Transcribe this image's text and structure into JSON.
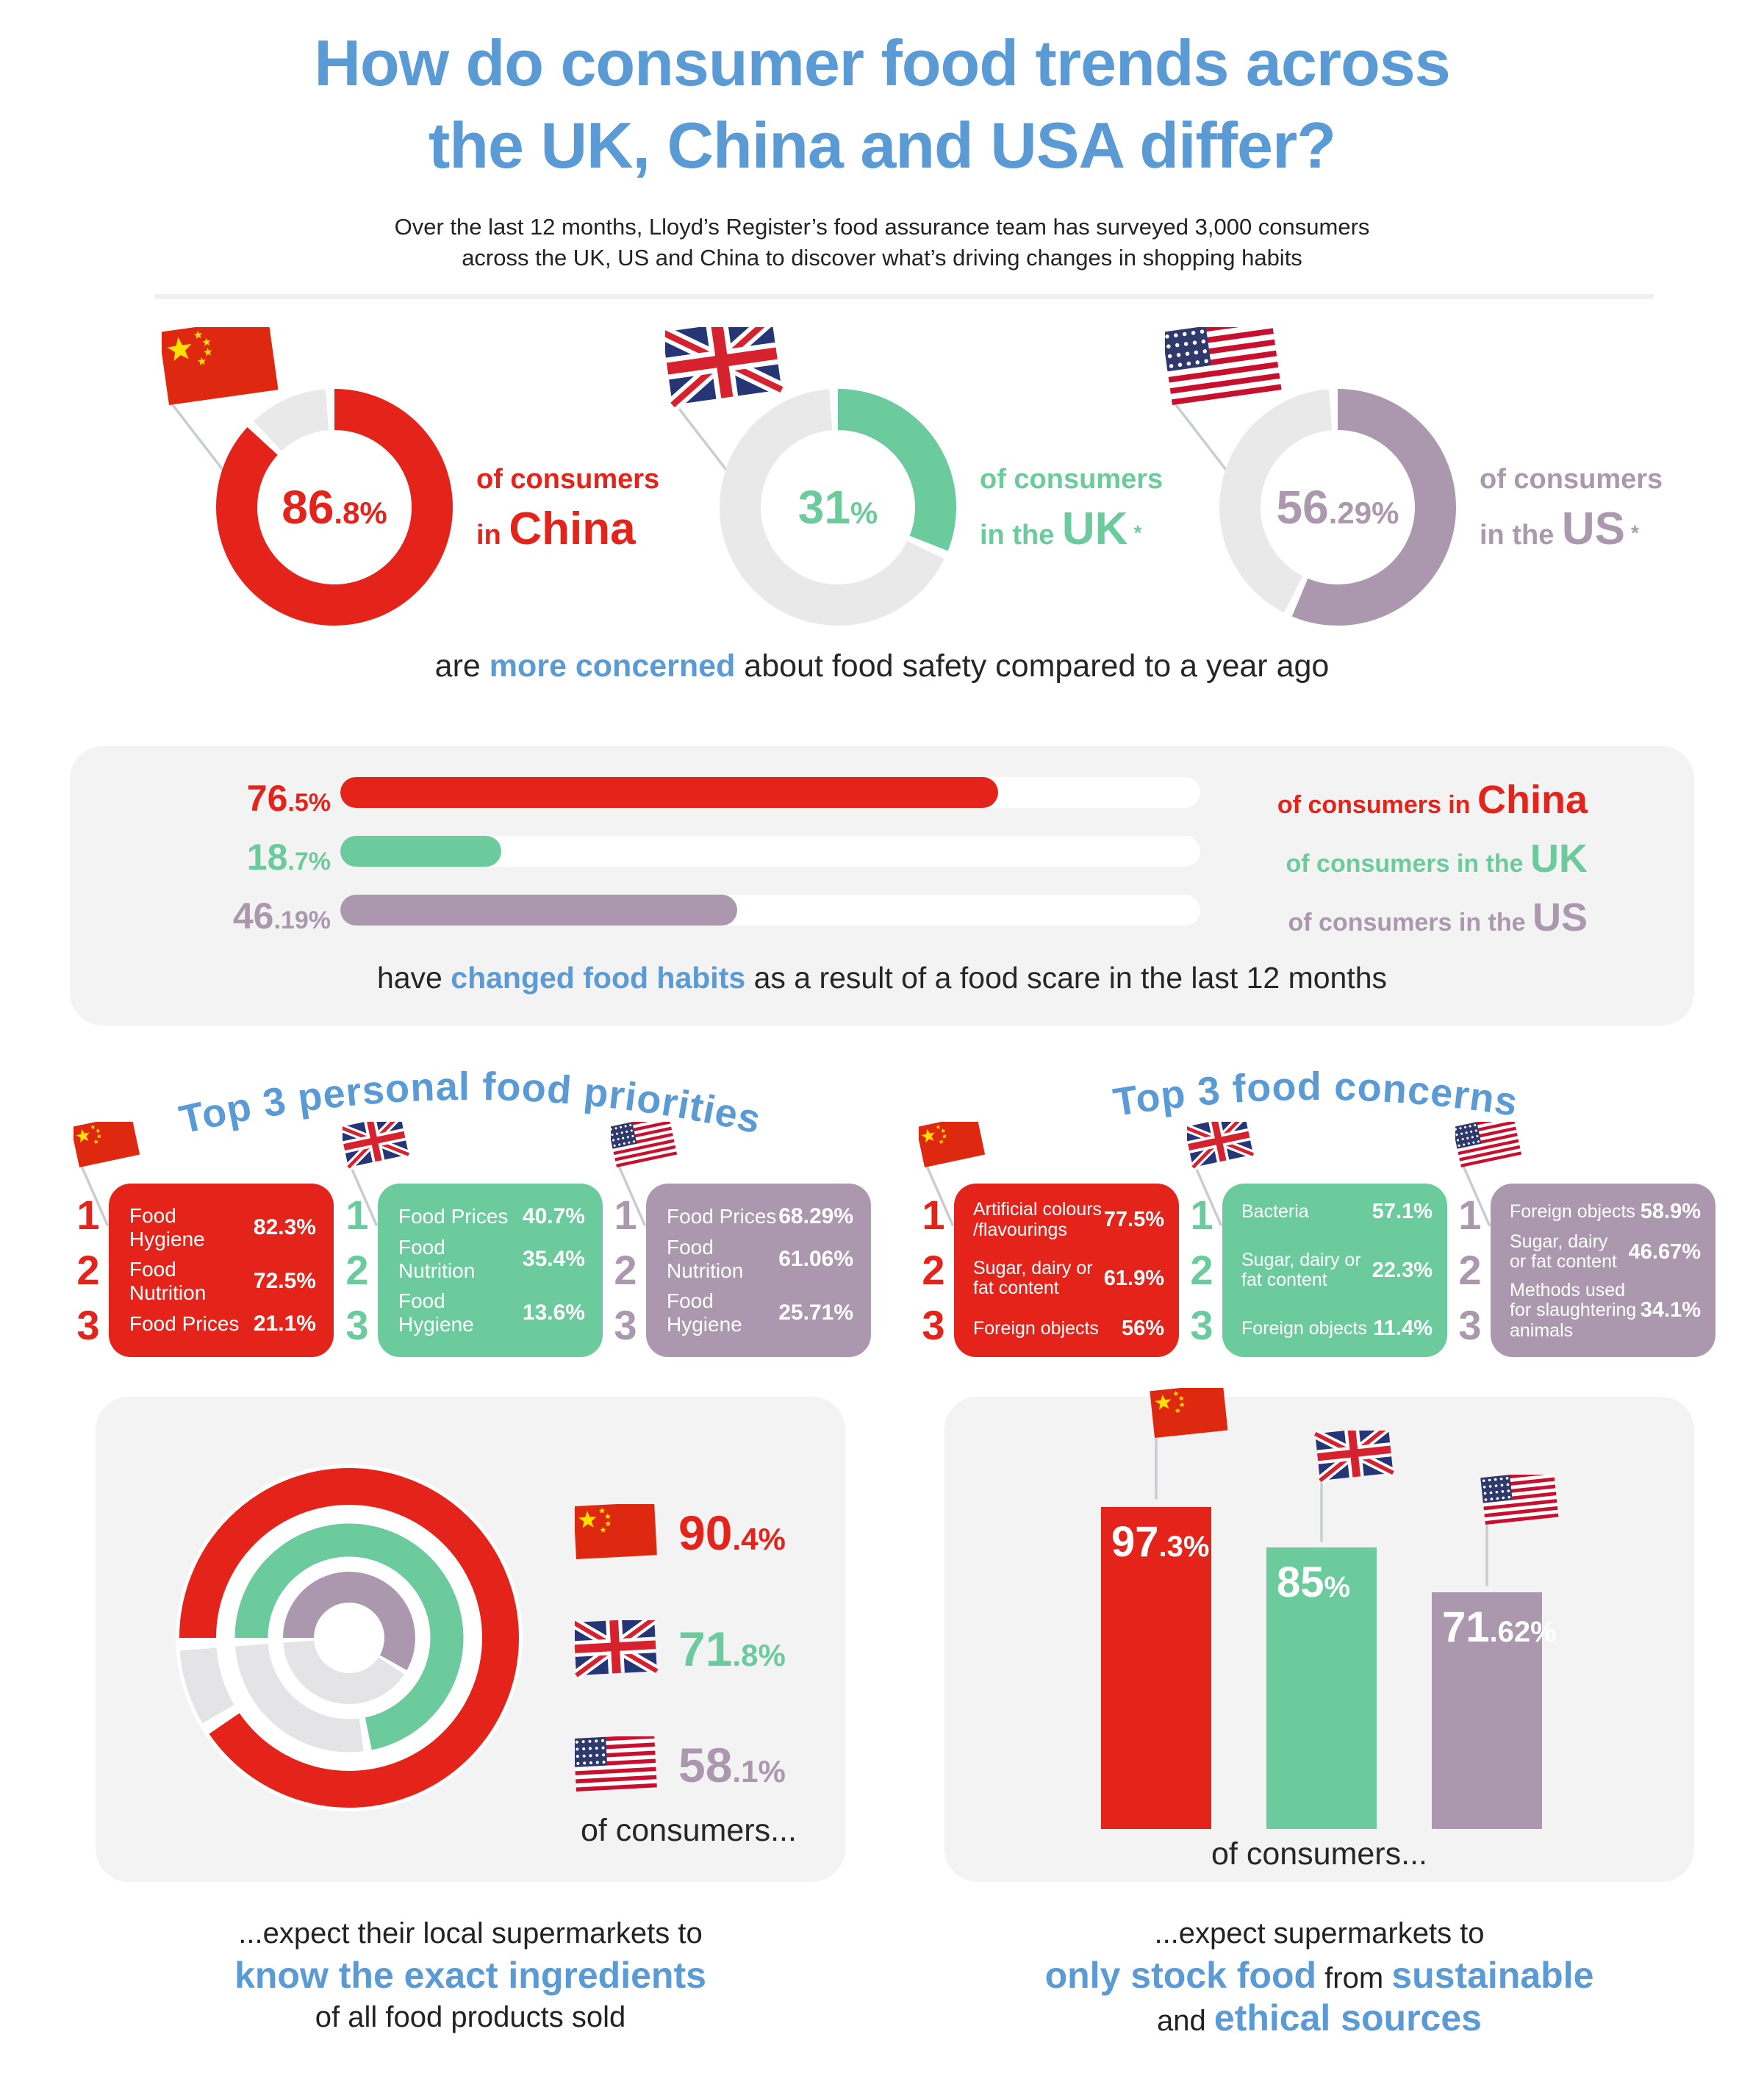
{
  "colors": {
    "china": "#e4231b",
    "uk": "#6bcb9d",
    "us": "#ab97ae",
    "blue": "#5a9ad5",
    "track_light": "#e9e9ea",
    "track_gray": "#e4e4e6",
    "panel": "#f3f3f4",
    "pole": "#c9cdd1"
  },
  "header": {
    "title_line1": "How do consumer food trends across",
    "title_line2": "the UK, China and USA differ?",
    "subtitle_line1": "Over the last 12 months, Lloyd’s Register’s food assurance team has surveyed 3,000 consumers",
    "subtitle_line2": "across the UK, US and China to discover what’s driving changes in shopping habits"
  },
  "safety_donuts": {
    "caption": {
      "pre": "are ",
      "highlight": "more concerned",
      "post": " about food safety compared to a year ago"
    },
    "items": [
      {
        "country": "china",
        "percent": 86.8,
        "value_big": "86",
        "value_small": ".8%",
        "label_line1": "of consumers",
        "label_line2_pre": "in ",
        "label_line2_big": "China",
        "asterisk": ""
      },
      {
        "country": "uk",
        "percent": 31,
        "value_big": "31",
        "value_small": "%",
        "label_line1": "of consumers",
        "label_line2_pre": "in the ",
        "label_line2_big": "UK",
        "asterisk": "*"
      },
      {
        "country": "us",
        "percent": 56.29,
        "value_big": "56",
        "value_small": ".29%",
        "label_line1": "of consumers",
        "label_line2_pre": "in the ",
        "label_line2_big": "US",
        "asterisk": "*"
      }
    ]
  },
  "habit_bars": {
    "caption": {
      "pre": "have ",
      "highlight": "changed food habits",
      "post": " as a result of a food scare in the last 12 months"
    },
    "items": [
      {
        "country": "china",
        "percent": 76.5,
        "value_big": "76",
        "value_small": ".5%",
        "label_pre": "of consumers in ",
        "label_big": "China"
      },
      {
        "country": "uk",
        "percent": 18.7,
        "value_big": "18",
        "value_small": ".7%",
        "label_pre": "of consumers in the ",
        "label_big": "UK"
      },
      {
        "country": "us",
        "percent": 46.19,
        "value_big": "46",
        "value_small": ".19%",
        "label_pre": "of consumers in the ",
        "label_big": "US"
      }
    ]
  },
  "priorities": {
    "title": "Top 3 personal food priorities",
    "tables": [
      {
        "country": "china",
        "rows": [
          {
            "rank": "1",
            "label": "Food Hygiene",
            "value": "82.3%"
          },
          {
            "rank": "2",
            "label": "Food Nutrition",
            "value": "72.5%"
          },
          {
            "rank": "3",
            "label": "Food Prices",
            "value": "21.1%"
          }
        ]
      },
      {
        "country": "uk",
        "rows": [
          {
            "rank": "1",
            "label": "Food Prices",
            "value": "40.7%"
          },
          {
            "rank": "2",
            "label": "Food Nutrition",
            "value": "35.4%"
          },
          {
            "rank": "3",
            "label": "Food Hygiene",
            "value": "13.6%"
          }
        ]
      },
      {
        "country": "us",
        "rows": [
          {
            "rank": "1",
            "label": "Food Prices",
            "value": "68.29%"
          },
          {
            "rank": "2",
            "label": "Food Nutrition",
            "value": "61.06%"
          },
          {
            "rank": "3",
            "label": "Food Hygiene",
            "value": "25.71%"
          }
        ]
      }
    ]
  },
  "concerns": {
    "title": "Top 3 food concerns",
    "tables": [
      {
        "country": "china",
        "rows": [
          {
            "rank": "1",
            "label": "Artificial colours /flavourings",
            "value": "77.5%"
          },
          {
            "rank": "2",
            "label": "Sugar, dairy or fat content",
            "value": "61.9%"
          },
          {
            "rank": "3",
            "label": "Foreign objects",
            "value": "56%"
          }
        ]
      },
      {
        "country": "uk",
        "rows": [
          {
            "rank": "1",
            "label": "Bacteria",
            "value": "57.1%"
          },
          {
            "rank": "2",
            "label": "Sugar, dairy or fat content",
            "value": "22.3%"
          },
          {
            "rank": "3",
            "label": "Foreign objects",
            "value": "11.4%"
          }
        ]
      },
      {
        "country": "us",
        "rows": [
          {
            "rank": "1",
            "label": "Foreign objects",
            "value": "58.9%"
          },
          {
            "rank": "2",
            "label": "Sugar, dairy or fat content",
            "value": "46.67%"
          },
          {
            "rank": "3",
            "label": "Methods used for slaughtering animals",
            "value": "34.1%"
          }
        ]
      }
    ]
  },
  "ingredients": {
    "rings": [
      {
        "country": "china",
        "percent": 90.4,
        "value_big": "90",
        "value_small": ".4%"
      },
      {
        "country": "uk",
        "percent": 71.8,
        "value_big": "71",
        "value_small": ".8%"
      },
      {
        "country": "us",
        "percent": 58.1,
        "value_big": "58",
        "value_small": ".1%"
      }
    ],
    "footer": "of consumers...",
    "caption": {
      "line1": "...expect their local supermarkets to",
      "line2": "know the exact ingredients",
      "line3": "of all food products sold"
    }
  },
  "sustainable": {
    "bars": [
      {
        "country": "china",
        "percent": 97.3,
        "value_big": "97",
        "value_small": ".3%"
      },
      {
        "country": "uk",
        "percent": 85,
        "value_big": "85",
        "value_small": "%"
      },
      {
        "country": "us",
        "percent": 71.62,
        "value_big": "71",
        "value_small": ".62%"
      }
    ],
    "footer": "of consumers...",
    "caption": {
      "line1": "...expect supermarkets to",
      "line2_hl1": "only stock food",
      "line2_mid": " from ",
      "line2_hl2": "sustainable",
      "line3_pre": "and ",
      "line3_hl": "ethical sources"
    }
  },
  "chart_data": [
    {
      "type": "pie",
      "title": "more concerned about food safety compared to a year ago",
      "categories": [
        "China",
        "UK",
        "US"
      ],
      "values": [
        86.8,
        31,
        56.29
      ],
      "unit": "%",
      "style": "donut"
    },
    {
      "type": "bar",
      "title": "have changed food habits as a result of a food scare in the last 12 months",
      "categories": [
        "China",
        "UK",
        "US"
      ],
      "values": [
        76.5,
        18.7,
        46.19
      ],
      "unit": "%",
      "orientation": "horizontal",
      "xlim": [
        0,
        100
      ]
    },
    {
      "type": "table",
      "title": "Top 3 personal food priorities",
      "series": [
        {
          "name": "China",
          "rows": [
            [
              "Food Hygiene",
              82.3
            ],
            [
              "Food Nutrition",
              72.5
            ],
            [
              "Food Prices",
              21.1
            ]
          ]
        },
        {
          "name": "UK",
          "rows": [
            [
              "Food Prices",
              40.7
            ],
            [
              "Food Nutrition",
              35.4
            ],
            [
              "Food Hygiene",
              13.6
            ]
          ]
        },
        {
          "name": "US",
          "rows": [
            [
              "Food Prices",
              68.29
            ],
            [
              "Food Nutrition",
              61.06
            ],
            [
              "Food Hygiene",
              25.71
            ]
          ]
        }
      ]
    },
    {
      "type": "table",
      "title": "Top 3 food concerns",
      "series": [
        {
          "name": "China",
          "rows": [
            [
              "Artificial colours /flavourings",
              77.5
            ],
            [
              "Sugar, dairy or fat content",
              61.9
            ],
            [
              "Foreign objects",
              56
            ]
          ]
        },
        {
          "name": "UK",
          "rows": [
            [
              "Bacteria",
              57.1
            ],
            [
              "Sugar, dairy or fat content",
              22.3
            ],
            [
              "Foreign objects",
              11.4
            ]
          ]
        },
        {
          "name": "US",
          "rows": [
            [
              "Foreign objects",
              58.9
            ],
            [
              "Sugar, dairy or fat content",
              46.67
            ],
            [
              "Methods used for slaughtering animals",
              34.1
            ]
          ]
        }
      ]
    },
    {
      "type": "pie",
      "title": "expect their local supermarkets to know the exact ingredients of all food products sold",
      "categories": [
        "China",
        "UK",
        "US"
      ],
      "values": [
        90.4,
        71.8,
        58.1
      ],
      "unit": "%",
      "style": "concentric-rings"
    },
    {
      "type": "bar",
      "title": "expect supermarkets to only stock food from sustainable and ethical sources",
      "categories": [
        "China",
        "UK",
        "US"
      ],
      "values": [
        97.3,
        85,
        71.62
      ],
      "unit": "%",
      "orientation": "vertical"
    }
  ]
}
